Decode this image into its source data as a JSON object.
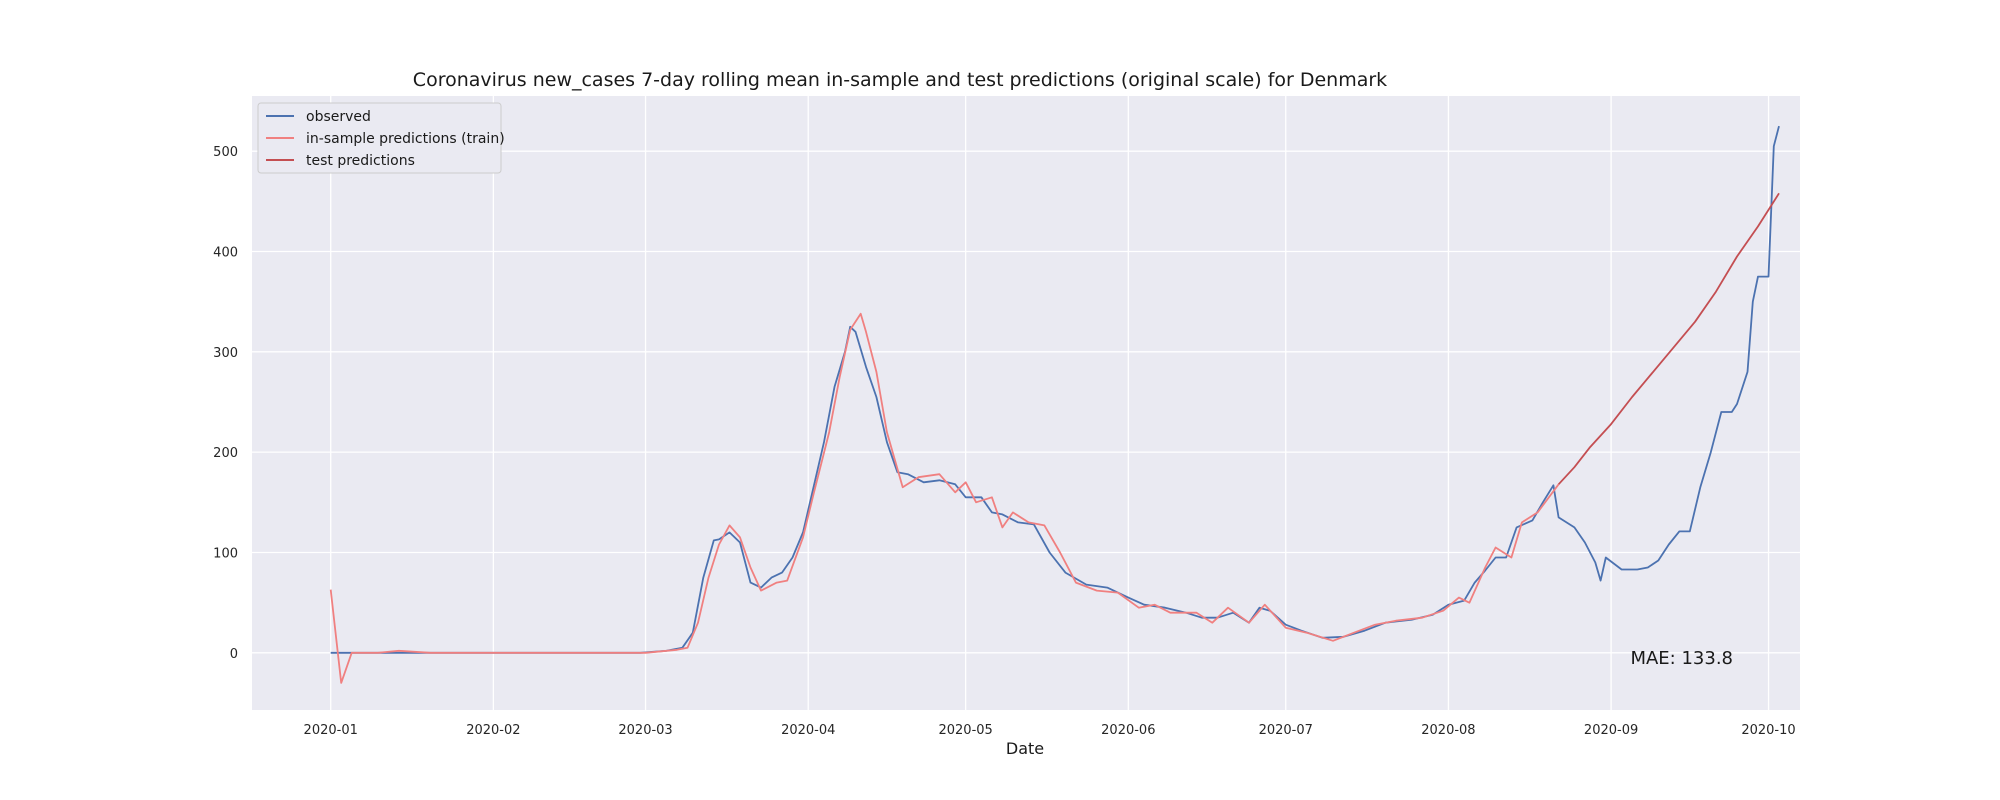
{
  "chart_data": {
    "type": "line",
    "title": "Coronavirus new_cases 7-day rolling mean in-sample and test predictions (original scale) for Denmark",
    "xlabel": "Date",
    "ylabel": "",
    "x_ticks": [
      "2020-01",
      "2020-02",
      "2020-03",
      "2020-04",
      "2020-05",
      "2020-06",
      "2020-07",
      "2020-08",
      "2020-09",
      "2020-10"
    ],
    "y_ticks": [
      0,
      100,
      200,
      300,
      400,
      500
    ],
    "xlim": [
      "2019-12-17",
      "2020-10-07"
    ],
    "ylim": [
      -57,
      555
    ],
    "grid": true,
    "legend_position": "top-left",
    "annotation": "MAE: 133.8",
    "colors": {
      "background": "#eaeaf2",
      "grid": "#ffffff",
      "observed": "#4c72b0",
      "in_sample": "#f08080",
      "test": "#c44e52"
    },
    "series": [
      {
        "name": "observed",
        "color": "#4c72b0",
        "points": [
          [
            "2020-01-01",
            0
          ],
          [
            "2020-01-10",
            0
          ],
          [
            "2020-01-20",
            0
          ],
          [
            "2020-01-31",
            0
          ],
          [
            "2020-02-15",
            0
          ],
          [
            "2020-02-29",
            0
          ],
          [
            "2020-03-05",
            2
          ],
          [
            "2020-03-08",
            5
          ],
          [
            "2020-03-10",
            20
          ],
          [
            "2020-03-12",
            75
          ],
          [
            "2020-03-14",
            112
          ],
          [
            "2020-03-15",
            113
          ],
          [
            "2020-03-17",
            120
          ],
          [
            "2020-03-19",
            110
          ],
          [
            "2020-03-21",
            70
          ],
          [
            "2020-03-23",
            65
          ],
          [
            "2020-03-25",
            75
          ],
          [
            "2020-03-27",
            80
          ],
          [
            "2020-03-29",
            95
          ],
          [
            "2020-03-31",
            120
          ],
          [
            "2020-04-02",
            165
          ],
          [
            "2020-04-04",
            210
          ],
          [
            "2020-04-06",
            265
          ],
          [
            "2020-04-08",
            300
          ],
          [
            "2020-04-09",
            325
          ],
          [
            "2020-04-10",
            320
          ],
          [
            "2020-04-12",
            285
          ],
          [
            "2020-04-14",
            255
          ],
          [
            "2020-04-16",
            210
          ],
          [
            "2020-04-18",
            180
          ],
          [
            "2020-04-20",
            178
          ],
          [
            "2020-04-23",
            170
          ],
          [
            "2020-04-26",
            172
          ],
          [
            "2020-04-29",
            168
          ],
          [
            "2020-05-01",
            155
          ],
          [
            "2020-05-04",
            155
          ],
          [
            "2020-05-06",
            140
          ],
          [
            "2020-05-08",
            138
          ],
          [
            "2020-05-11",
            130
          ],
          [
            "2020-05-14",
            128
          ],
          [
            "2020-05-17",
            100
          ],
          [
            "2020-05-20",
            80
          ],
          [
            "2020-05-24",
            68
          ],
          [
            "2020-05-28",
            65
          ],
          [
            "2020-06-01",
            55
          ],
          [
            "2020-06-04",
            48
          ],
          [
            "2020-06-08",
            45
          ],
          [
            "2020-06-12",
            40
          ],
          [
            "2020-06-15",
            35
          ],
          [
            "2020-06-18",
            35
          ],
          [
            "2020-06-21",
            40
          ],
          [
            "2020-06-24",
            30
          ],
          [
            "2020-06-26",
            45
          ],
          [
            "2020-06-28",
            42
          ],
          [
            "2020-07-01",
            28
          ],
          [
            "2020-07-04",
            22
          ],
          [
            "2020-07-08",
            15
          ],
          [
            "2020-07-12",
            16
          ],
          [
            "2020-07-16",
            22
          ],
          [
            "2020-07-20",
            30
          ],
          [
            "2020-07-25",
            33
          ],
          [
            "2020-07-29",
            38
          ],
          [
            "2020-08-01",
            48
          ],
          [
            "2020-08-04",
            52
          ],
          [
            "2020-08-06",
            70
          ],
          [
            "2020-08-08",
            82
          ],
          [
            "2020-08-10",
            95
          ],
          [
            "2020-08-12",
            95
          ],
          [
            "2020-08-14",
            125
          ],
          [
            "2020-08-17",
            132
          ],
          [
            "2020-08-19",
            150
          ],
          [
            "2020-08-21",
            167
          ],
          [
            "2020-08-22",
            135
          ],
          [
            "2020-08-25",
            125
          ],
          [
            "2020-08-27",
            110
          ],
          [
            "2020-08-29",
            90
          ],
          [
            "2020-08-30",
            72
          ],
          [
            "2020-08-31",
            95
          ],
          [
            "2020-09-03",
            83
          ],
          [
            "2020-09-06",
            83
          ],
          [
            "2020-09-08",
            85
          ],
          [
            "2020-09-10",
            92
          ],
          [
            "2020-09-12",
            108
          ],
          [
            "2020-09-14",
            121
          ],
          [
            "2020-09-16",
            121
          ],
          [
            "2020-09-18",
            165
          ],
          [
            "2020-09-20",
            200
          ],
          [
            "2020-09-22",
            240
          ],
          [
            "2020-09-24",
            240
          ],
          [
            "2020-09-25",
            248
          ],
          [
            "2020-09-27",
            280
          ],
          [
            "2020-09-28",
            350
          ],
          [
            "2020-09-29",
            375
          ],
          [
            "2020-10-01",
            375
          ],
          [
            "2020-10-02",
            505
          ],
          [
            "2020-10-03",
            525
          ]
        ]
      },
      {
        "name": "in-sample predictions (train)",
        "color": "#f08080",
        "points": [
          [
            "2020-01-01",
            63
          ],
          [
            "2020-01-03",
            -30
          ],
          [
            "2020-01-05",
            0
          ],
          [
            "2020-01-10",
            0
          ],
          [
            "2020-01-14",
            2
          ],
          [
            "2020-01-20",
            0
          ],
          [
            "2020-02-01",
            0
          ],
          [
            "2020-02-15",
            0
          ],
          [
            "2020-03-01",
            0
          ],
          [
            "2020-03-07",
            3
          ],
          [
            "2020-03-09",
            5
          ],
          [
            "2020-03-11",
            30
          ],
          [
            "2020-03-13",
            75
          ],
          [
            "2020-03-15",
            108
          ],
          [
            "2020-03-17",
            127
          ],
          [
            "2020-03-19",
            115
          ],
          [
            "2020-03-21",
            85
          ],
          [
            "2020-03-23",
            62
          ],
          [
            "2020-03-26",
            70
          ],
          [
            "2020-03-28",
            72
          ],
          [
            "2020-03-31",
            115
          ],
          [
            "2020-04-02",
            158
          ],
          [
            "2020-04-05",
            220
          ],
          [
            "2020-04-07",
            275
          ],
          [
            "2020-04-09",
            322
          ],
          [
            "2020-04-11",
            338
          ],
          [
            "2020-04-12",
            320
          ],
          [
            "2020-04-14",
            280
          ],
          [
            "2020-04-16",
            220
          ],
          [
            "2020-04-19",
            165
          ],
          [
            "2020-04-22",
            175
          ],
          [
            "2020-04-26",
            178
          ],
          [
            "2020-04-29",
            160
          ],
          [
            "2020-05-01",
            170
          ],
          [
            "2020-05-03",
            150
          ],
          [
            "2020-05-06",
            155
          ],
          [
            "2020-05-08",
            125
          ],
          [
            "2020-05-10",
            140
          ],
          [
            "2020-05-13",
            130
          ],
          [
            "2020-05-16",
            127
          ],
          [
            "2020-05-19",
            100
          ],
          [
            "2020-05-22",
            70
          ],
          [
            "2020-05-26",
            62
          ],
          [
            "2020-05-30",
            60
          ],
          [
            "2020-06-03",
            45
          ],
          [
            "2020-06-06",
            48
          ],
          [
            "2020-06-09",
            40
          ],
          [
            "2020-06-14",
            40
          ],
          [
            "2020-06-17",
            30
          ],
          [
            "2020-06-20",
            45
          ],
          [
            "2020-06-24",
            30
          ],
          [
            "2020-06-27",
            48
          ],
          [
            "2020-07-01",
            25
          ],
          [
            "2020-07-05",
            20
          ],
          [
            "2020-07-10",
            12
          ],
          [
            "2020-07-14",
            20
          ],
          [
            "2020-07-18",
            28
          ],
          [
            "2020-07-22",
            32
          ],
          [
            "2020-07-27",
            35
          ],
          [
            "2020-07-31",
            42
          ],
          [
            "2020-08-03",
            55
          ],
          [
            "2020-08-05",
            50
          ],
          [
            "2020-08-08",
            85
          ],
          [
            "2020-08-10",
            105
          ],
          [
            "2020-08-13",
            95
          ],
          [
            "2020-08-15",
            130
          ],
          [
            "2020-08-18",
            140
          ],
          [
            "2020-08-22",
            168
          ]
        ]
      },
      {
        "name": "test predictions",
        "color": "#c44e52",
        "points": [
          [
            "2020-08-22",
            168
          ],
          [
            "2020-08-25",
            185
          ],
          [
            "2020-08-28",
            205
          ],
          [
            "2020-09-01",
            228
          ],
          [
            "2020-09-05",
            255
          ],
          [
            "2020-09-09",
            280
          ],
          [
            "2020-09-13",
            305
          ],
          [
            "2020-09-17",
            330
          ],
          [
            "2020-09-21",
            360
          ],
          [
            "2020-09-25",
            395
          ],
          [
            "2020-09-29",
            425
          ],
          [
            "2020-10-03",
            458
          ]
        ]
      }
    ]
  }
}
